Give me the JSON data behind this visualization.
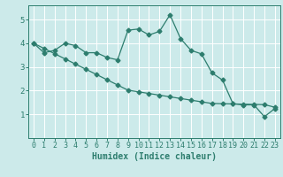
{
  "title": "",
  "xlabel": "Humidex (Indice chaleur)",
  "x_values": [
    0,
    1,
    2,
    3,
    4,
    5,
    6,
    7,
    8,
    9,
    10,
    11,
    12,
    13,
    14,
    15,
    16,
    17,
    18,
    19,
    20,
    21,
    22,
    23
  ],
  "line1_y": [
    4.0,
    3.6,
    3.7,
    4.0,
    3.9,
    3.6,
    3.6,
    3.4,
    3.3,
    4.55,
    4.6,
    4.35,
    4.5,
    5.2,
    4.2,
    3.7,
    3.55,
    2.75,
    2.45,
    1.45,
    1.4,
    1.4,
    0.9,
    1.25
  ],
  "line2_y": [
    4.0,
    3.78,
    3.56,
    3.34,
    3.12,
    2.9,
    2.68,
    2.46,
    2.24,
    2.02,
    1.95,
    1.88,
    1.81,
    1.74,
    1.67,
    1.6,
    1.53,
    1.46,
    1.45,
    1.44,
    1.43,
    1.42,
    1.41,
    1.3
  ],
  "line_color": "#2d7d6e",
  "bg_color": "#cceaea",
  "grid_color": "#ffffff",
  "xlim_min": -0.5,
  "xlim_max": 23.5,
  "ylim_min": 0.0,
  "ylim_max": 5.6,
  "yticks": [
    1,
    2,
    3,
    4,
    5
  ],
  "xticks": [
    0,
    1,
    2,
    3,
    4,
    5,
    6,
    7,
    8,
    9,
    10,
    11,
    12,
    13,
    14,
    15,
    16,
    17,
    18,
    19,
    20,
    21,
    22,
    23
  ],
  "xlabel_fontsize": 7,
  "tick_fontsize": 6,
  "marker_size": 2.5,
  "linewidth": 0.9
}
